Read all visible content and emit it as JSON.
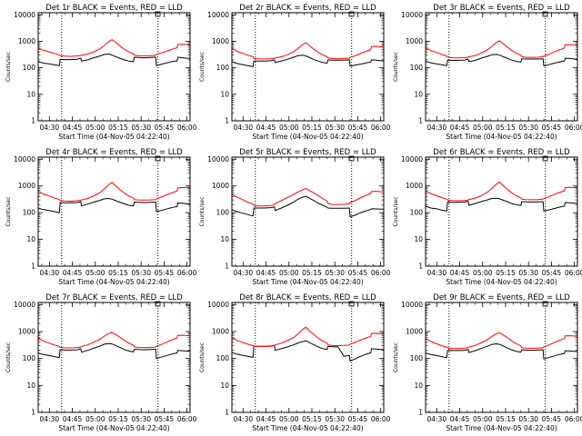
{
  "chart_data": {
    "type": "line",
    "layout": "3x3 grid",
    "shared": {
      "xlabel": "Start Time (04-Nov-05 04:22:40)",
      "ylabel": "Counts/sec",
      "x_ticks": [
        "04:30",
        "04:45",
        "05:00",
        "05:15",
        "05:30",
        "05:45",
        "06:00"
      ],
      "x_tick_minutes": [
        30,
        45,
        60,
        75,
        90,
        105,
        120
      ],
      "xlim_minutes": [
        22.67,
        122
      ],
      "y_scale": "log",
      "y_ticks": [
        "1",
        "10",
        "100",
        "1000",
        "10000"
      ],
      "y_tick_values": [
        1,
        10,
        100,
        1000,
        10000
      ],
      "ylim": [
        1,
        12000
      ],
      "vlines_minutes": [
        38,
        101
      ],
      "x": [
        22.7,
        26,
        30,
        33,
        36.5,
        37,
        40,
        44,
        48,
        50.5,
        51,
        55,
        59,
        63,
        66,
        69,
        71,
        73,
        76,
        79,
        82,
        85,
        85.5,
        88,
        92,
        96,
        99.5,
        100,
        103,
        106,
        109,
        112,
        113.5,
        114,
        117,
        120,
        122
      ],
      "series_names": [
        "Events",
        "LLD"
      ],
      "series_colors": [
        "#000000",
        "#ff0000"
      ]
    },
    "panels": [
      {
        "title": "Det 1r BLACK = Events, RED = LLD",
        "series": [
          {
            "name": "Events",
            "values": [
              170,
              150,
              140,
              130,
              120,
              210,
              205,
              205,
              210,
              230,
              180,
              200,
              240,
              280,
              320,
              330,
              300,
              270,
              230,
              200,
              180,
              170,
              250,
              245,
              240,
              245,
              250,
              120,
              135,
              150,
              165,
              180,
              180,
              250,
              240,
              230,
              230
            ]
          },
          {
            "name": "LLD",
            "values": [
              560,
              460,
              400,
              350,
              310,
              290,
              275,
              270,
              280,
              290,
              300,
              330,
              400,
              520,
              700,
              1000,
              1150,
              950,
              680,
              500,
              400,
              330,
              300,
              290,
              285,
              290,
              300,
              320,
              360,
              410,
              470,
              540,
              570,
              760,
              770,
              750,
              740
            ]
          }
        ]
      },
      {
        "title": "Det 2r BLACK = Events, RED = LLD",
        "series": [
          {
            "name": "Events",
            "values": [
              170,
              145,
              130,
              120,
              110,
              180,
              180,
              180,
              185,
              200,
              160,
              180,
              210,
              250,
              290,
              300,
              280,
              250,
              210,
              180,
              160,
              150,
              200,
              195,
              195,
              195,
              200,
              115,
              125,
              135,
              145,
              160,
              165,
              200,
              195,
              185,
              185
            ]
          },
          {
            "name": "LLD",
            "values": [
              560,
              420,
              350,
              300,
              260,
              230,
              220,
              215,
              220,
              230,
              235,
              260,
              310,
              400,
              540,
              760,
              880,
              720,
              520,
              390,
              310,
              260,
              235,
              225,
              220,
              225,
              230,
              250,
              280,
              330,
              390,
              450,
              480,
              630,
              640,
              620,
              610
            ]
          }
        ]
      },
      {
        "title": "Det 3r BLACK = Events, RED = LLD",
        "series": [
          {
            "name": "Events",
            "values": [
              175,
              155,
              140,
              130,
              120,
              195,
              190,
              190,
              195,
              215,
              170,
              190,
              230,
              270,
              310,
              320,
              300,
              270,
              230,
              195,
              175,
              165,
              220,
              215,
              215,
              215,
              220,
              118,
              130,
              145,
              160,
              175,
              180,
              230,
              225,
              215,
              215
            ]
          },
          {
            "name": "LLD",
            "values": [
              580,
              450,
              380,
              320,
              280,
              250,
              240,
              235,
              240,
              250,
              260,
              290,
              360,
              470,
              640,
              900,
              1050,
              850,
              610,
              450,
              360,
              300,
              265,
              250,
              245,
              250,
              260,
              280,
              320,
              380,
              450,
              520,
              560,
              740,
              750,
              730,
              720
            ]
          }
        ]
      },
      {
        "title": "Det 4r BLACK = Events, RED = LLD",
        "series": [
          {
            "name": "Events",
            "values": [
              150,
              130,
              120,
              110,
              100,
              240,
              235,
              235,
              240,
              260,
              180,
              210,
              250,
              290,
              330,
              340,
              320,
              290,
              250,
              215,
              190,
              180,
              250,
              245,
              240,
              245,
              250,
              110,
              120,
              135,
              150,
              165,
              170,
              230,
              225,
              215,
              215
            ]
          },
          {
            "name": "LLD",
            "values": [
              640,
              500,
              420,
              360,
              310,
              290,
              275,
              270,
              280,
              290,
              300,
              340,
              420,
              560,
              780,
              1150,
              1350,
              1050,
              740,
              540,
              420,
              350,
              310,
              300,
              295,
              300,
              310,
              330,
              380,
              450,
              530,
              610,
              650,
              860,
              870,
              850,
              840
            ]
          }
        ]
      },
      {
        "title": "Det 5r BLACK = Events, RED = LLD",
        "series": [
          {
            "name": "Events",
            "values": [
              130,
              110,
              95,
              85,
              75,
              150,
              150,
              150,
              155,
              165,
              120,
              150,
              190,
              250,
              320,
              380,
              410,
              360,
              290,
              230,
              190,
              160,
              150,
              148,
              147,
              148,
              150,
              70,
              80,
              95,
              110,
              125,
              130,
              140,
              138,
              135,
              135
            ]
          },
          {
            "name": "LLD",
            "values": [
              480,
              380,
              300,
              250,
              210,
              190,
              180,
              178,
              185,
              200,
              220,
              280,
              370,
              480,
              600,
              720,
              800,
              700,
              560,
              440,
              340,
              270,
              220,
              205,
              200,
              205,
              215,
              240,
              280,
              340,
              410,
              490,
              530,
              620,
              630,
              610,
              600
            ]
          }
        ]
      },
      {
        "title": "Det 6r BLACK = Events, RED = LLD",
        "series": [
          {
            "name": "Events",
            "values": [
              175,
              150,
              140,
              125,
              115,
              250,
              245,
              245,
              250,
              270,
              190,
              220,
              260,
              300,
              340,
              350,
              330,
              300,
              260,
              220,
              200,
              185,
              260,
              255,
              250,
              255,
              260,
              115,
              125,
              140,
              155,
              170,
              175,
              240,
              235,
              225,
              225
            ]
          },
          {
            "name": "LLD",
            "values": [
              660,
              520,
              430,
              370,
              320,
              300,
              285,
              280,
              290,
              300,
              310,
              350,
              430,
              580,
              800,
              1180,
              1400,
              1080,
              760,
              560,
              430,
              360,
              320,
              310,
              305,
              310,
              320,
              340,
              390,
              460,
              540,
              620,
              660,
              880,
              890,
              870,
              860
            ]
          }
        ]
      },
      {
        "title": "Det 7r BLACK = Events, RED = LLD",
        "series": [
          {
            "name": "Events",
            "values": [
              160,
              140,
              128,
              118,
              108,
              210,
              205,
              205,
              210,
              230,
              170,
              200,
              240,
              290,
              340,
              360,
              345,
              310,
              260,
              215,
              190,
              175,
              220,
              215,
              212,
              215,
              220,
              100,
              112,
              125,
              140,
              155,
              160,
              200,
              195,
              188,
              188
            ]
          },
          {
            "name": "LLD",
            "values": [
              580,
              450,
              370,
              320,
              280,
              260,
              250,
              248,
              255,
              265,
              280,
              320,
              400,
              520,
              680,
              860,
              920,
              800,
              620,
              470,
              370,
              310,
              270,
              258,
              255,
              258,
              265,
              285,
              330,
              390,
              460,
              540,
              580,
              720,
              730,
              710,
              700
            ]
          }
        ]
      },
      {
        "title": "Det 8r BLACK = Events, RED = LLD",
        "series": [
          {
            "name": "Events",
            "values": [
              165,
              145,
              130,
              120,
              110,
              290,
              285,
              285,
              290,
              310,
              200,
              230,
              270,
              320,
              380,
              420,
              460,
              400,
              330,
              270,
              235,
              215,
              280,
              275,
              270,
              120,
              130,
              80,
              95,
              115,
              135,
              155,
              160,
              230,
              225,
              215,
              215
            ]
          },
          {
            "name": "LLD",
            "values": [
              600,
              470,
              390,
              340,
              300,
              290,
              280,
              278,
              285,
              300,
              320,
              370,
              460,
              600,
              820,
              1200,
              1450,
              1120,
              790,
              580,
              450,
              370,
              320,
              305,
              300,
              305,
              315,
              340,
              390,
              460,
              540,
              620,
              660,
              850,
              860,
              840,
              830
            ]
          }
        ]
      },
      {
        "title": "Det 9r BLACK = Events, RED = LLD",
        "series": [
          {
            "name": "Events",
            "values": [
              160,
              140,
              128,
              118,
              108,
              200,
              197,
              197,
              200,
              215,
              165,
              195,
              235,
              285,
              330,
              350,
              335,
              300,
              250,
              210,
              185,
              170,
              210,
              205,
              202,
              205,
              210,
              95,
              108,
              120,
              135,
              150,
              155,
              195,
              190,
              183,
              183
            ]
          },
          {
            "name": "LLD",
            "values": [
              560,
              430,
              350,
              300,
              265,
              245,
              235,
              232,
              240,
              250,
              265,
              305,
              380,
              500,
              650,
              830,
              900,
              780,
              600,
              450,
              355,
              295,
              255,
              243,
              240,
              243,
              250,
              270,
              310,
              370,
              440,
              510,
              550,
              690,
              700,
              680,
              670
            ]
          }
        ]
      }
    ]
  }
}
